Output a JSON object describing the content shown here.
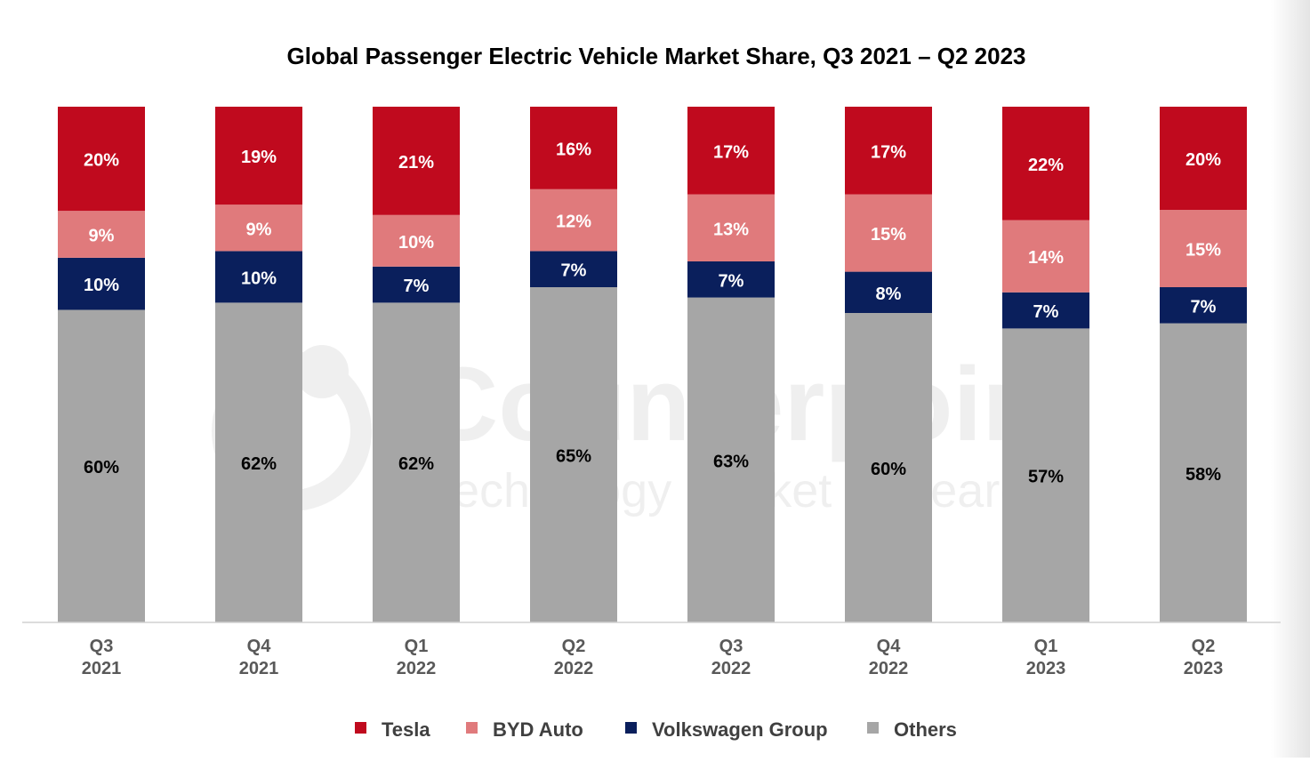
{
  "chart_data": {
    "type": "bar",
    "stacked": true,
    "title": "Global Passenger Electric Vehicle Market Share, Q3 2021 – Q2 2023",
    "xlabel": "",
    "ylabel": "",
    "ylim": [
      0,
      100
    ],
    "grid": false,
    "legend_position": "bottom",
    "categories": [
      [
        "Q3",
        "2021"
      ],
      [
        "Q4",
        "2021"
      ],
      [
        "Q1",
        "2022"
      ],
      [
        "Q2",
        "2022"
      ],
      [
        "Q3",
        "2022"
      ],
      [
        "Q4",
        "2022"
      ],
      [
        "Q1",
        "2023"
      ],
      [
        "Q2",
        "2023"
      ]
    ],
    "series": [
      {
        "name": "Others",
        "color": "#A6A6A6",
        "label_color": "#000000",
        "values": [
          60,
          62,
          62,
          65,
          63,
          60,
          57,
          58
        ]
      },
      {
        "name": "Volkswagen Group",
        "color": "#0A1F5C",
        "label_color": "#FFFFFF",
        "values": [
          10,
          10,
          7,
          7,
          7,
          8,
          7,
          7
        ]
      },
      {
        "name": "BYD Auto",
        "color": "#E07A7C",
        "label_color": "#FFFFFF",
        "values": [
          9,
          9,
          10,
          12,
          13,
          15,
          14,
          15
        ]
      },
      {
        "name": "Tesla",
        "color": "#C00A1E",
        "label_color": "#FFFFFF",
        "values": [
          20,
          19,
          21,
          16,
          17,
          17,
          22,
          20
        ]
      }
    ],
    "legend_order": [
      "Tesla",
      "BYD Auto",
      "Volkswagen Group",
      "Others"
    ],
    "value_suffix": "%"
  },
  "watermark": {
    "brand": "Counterpoint",
    "tagline": "Technology Market Research"
  }
}
